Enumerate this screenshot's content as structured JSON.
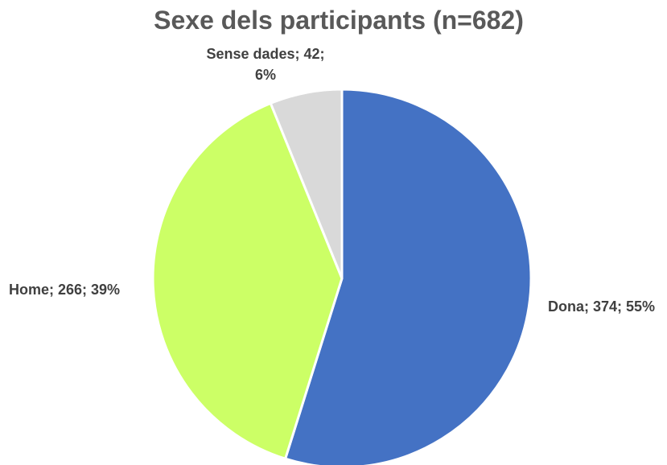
{
  "chart_data": {
    "type": "pie",
    "title": "Sexe dels participants (n=682)",
    "slices": [
      {
        "name": "Dona",
        "value": 374,
        "percent_label": "55%",
        "color": "#4472C4",
        "label_lines": [
          "Dona; 374; 55%"
        ]
      },
      {
        "name": "Home",
        "value": 266,
        "percent_label": "39%",
        "color": "#CCFF66",
        "label_lines": [
          "Home; 266; 39%"
        ]
      },
      {
        "name": "Sense dades",
        "value": 42,
        "percent_label": "6%",
        "color": "#D9D9D9",
        "label_lines": [
          "Sense dades; 42;",
          "6%"
        ]
      }
    ],
    "start_angle_deg": 0,
    "direction": "clockwise",
    "legend": "none"
  }
}
